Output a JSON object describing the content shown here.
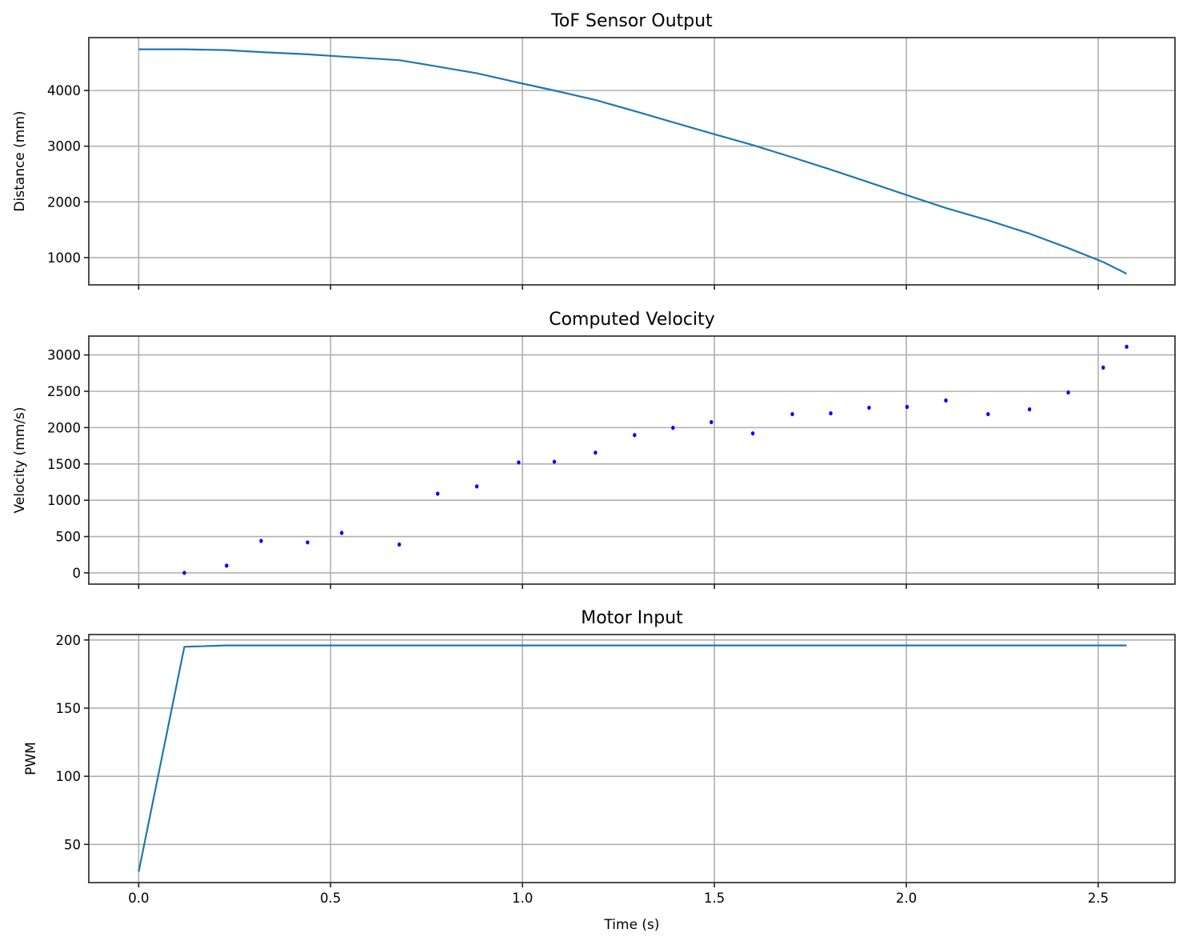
{
  "figure": {
    "xlabel": "Time (s)",
    "x_ticks": [
      0.0,
      0.5,
      1.0,
      1.5,
      2.0,
      2.5
    ],
    "x_tick_labels": [
      "0.0",
      "0.5",
      "1.0",
      "1.5",
      "2.0",
      "2.5"
    ],
    "line_color": "#1f77b4",
    "scatter_color": "#0000ff"
  },
  "chart_data": [
    {
      "type": "line",
      "title": "ToF Sensor Output",
      "xlabel": "",
      "ylabel": "Distance (mm)",
      "xlim": [
        -0.13,
        2.7
      ],
      "ylim": [
        510,
        4950
      ],
      "y_ticks": [
        1000,
        2000,
        3000,
        4000
      ],
      "y_tick_labels": [
        "1000",
        "2000",
        "3000",
        "4000"
      ],
      "grid": true,
      "x": [
        0.0,
        0.119,
        0.229,
        0.319,
        0.44,
        0.529,
        0.679,
        0.779,
        0.881,
        0.99,
        1.083,
        1.19,
        1.292,
        1.392,
        1.492,
        1.6,
        1.703,
        1.803,
        1.903,
        2.002,
        2.103,
        2.213,
        2.321,
        2.422,
        2.513,
        2.574
      ],
      "series": [
        {
          "name": "Distance",
          "values": [
            4740,
            4740,
            4725,
            4690,
            4650,
            4610,
            4545,
            4430,
            4310,
            4140,
            4000,
            3830,
            3630,
            3430,
            3230,
            3020,
            2800,
            2580,
            2350,
            2120,
            1890,
            1670,
            1430,
            1170,
            920,
            710
          ]
        }
      ]
    },
    {
      "type": "scatter",
      "title": "Computed Velocity",
      "xlabel": "",
      "ylabel": "Velocity (mm/s)",
      "xlim": [
        -0.13,
        2.7
      ],
      "ylim": [
        -155,
        3260
      ],
      "y_ticks": [
        0,
        500,
        1000,
        1500,
        2000,
        2500,
        3000
      ],
      "y_tick_labels": [
        "0",
        "500",
        "1000",
        "1500",
        "2000",
        "2500",
        "3000"
      ],
      "grid": true,
      "x": [
        0.119,
        0.229,
        0.319,
        0.44,
        0.529,
        0.679,
        0.779,
        0.881,
        0.99,
        1.083,
        1.19,
        1.292,
        1.392,
        1.492,
        1.6,
        1.703,
        1.803,
        1.903,
        2.002,
        2.103,
        2.213,
        2.321,
        2.422,
        2.513,
        2.574
      ],
      "series": [
        {
          "name": "Velocity",
          "values": [
            0,
            100,
            440,
            420,
            550,
            390,
            1090,
            1190,
            1520,
            1530,
            1655,
            1897,
            1997,
            2075,
            1920,
            2185,
            2196,
            2273,
            2284,
            2373,
            2185,
            2251,
            2483,
            2826,
            3113
          ]
        }
      ]
    },
    {
      "type": "line",
      "title": "Motor Input",
      "xlabel": "Time (s)",
      "ylabel": "PWM",
      "xlim": [
        -0.13,
        2.7
      ],
      "ylim": [
        22,
        204
      ],
      "y_ticks": [
        50,
        100,
        150,
        200
      ],
      "y_tick_labels": [
        "50",
        "100",
        "150",
        "200"
      ],
      "grid": true,
      "x": [
        0.0,
        0.119,
        0.229,
        2.574
      ],
      "series": [
        {
          "name": "PWM",
          "values": [
            30,
            195,
            196,
            196
          ]
        }
      ]
    }
  ]
}
